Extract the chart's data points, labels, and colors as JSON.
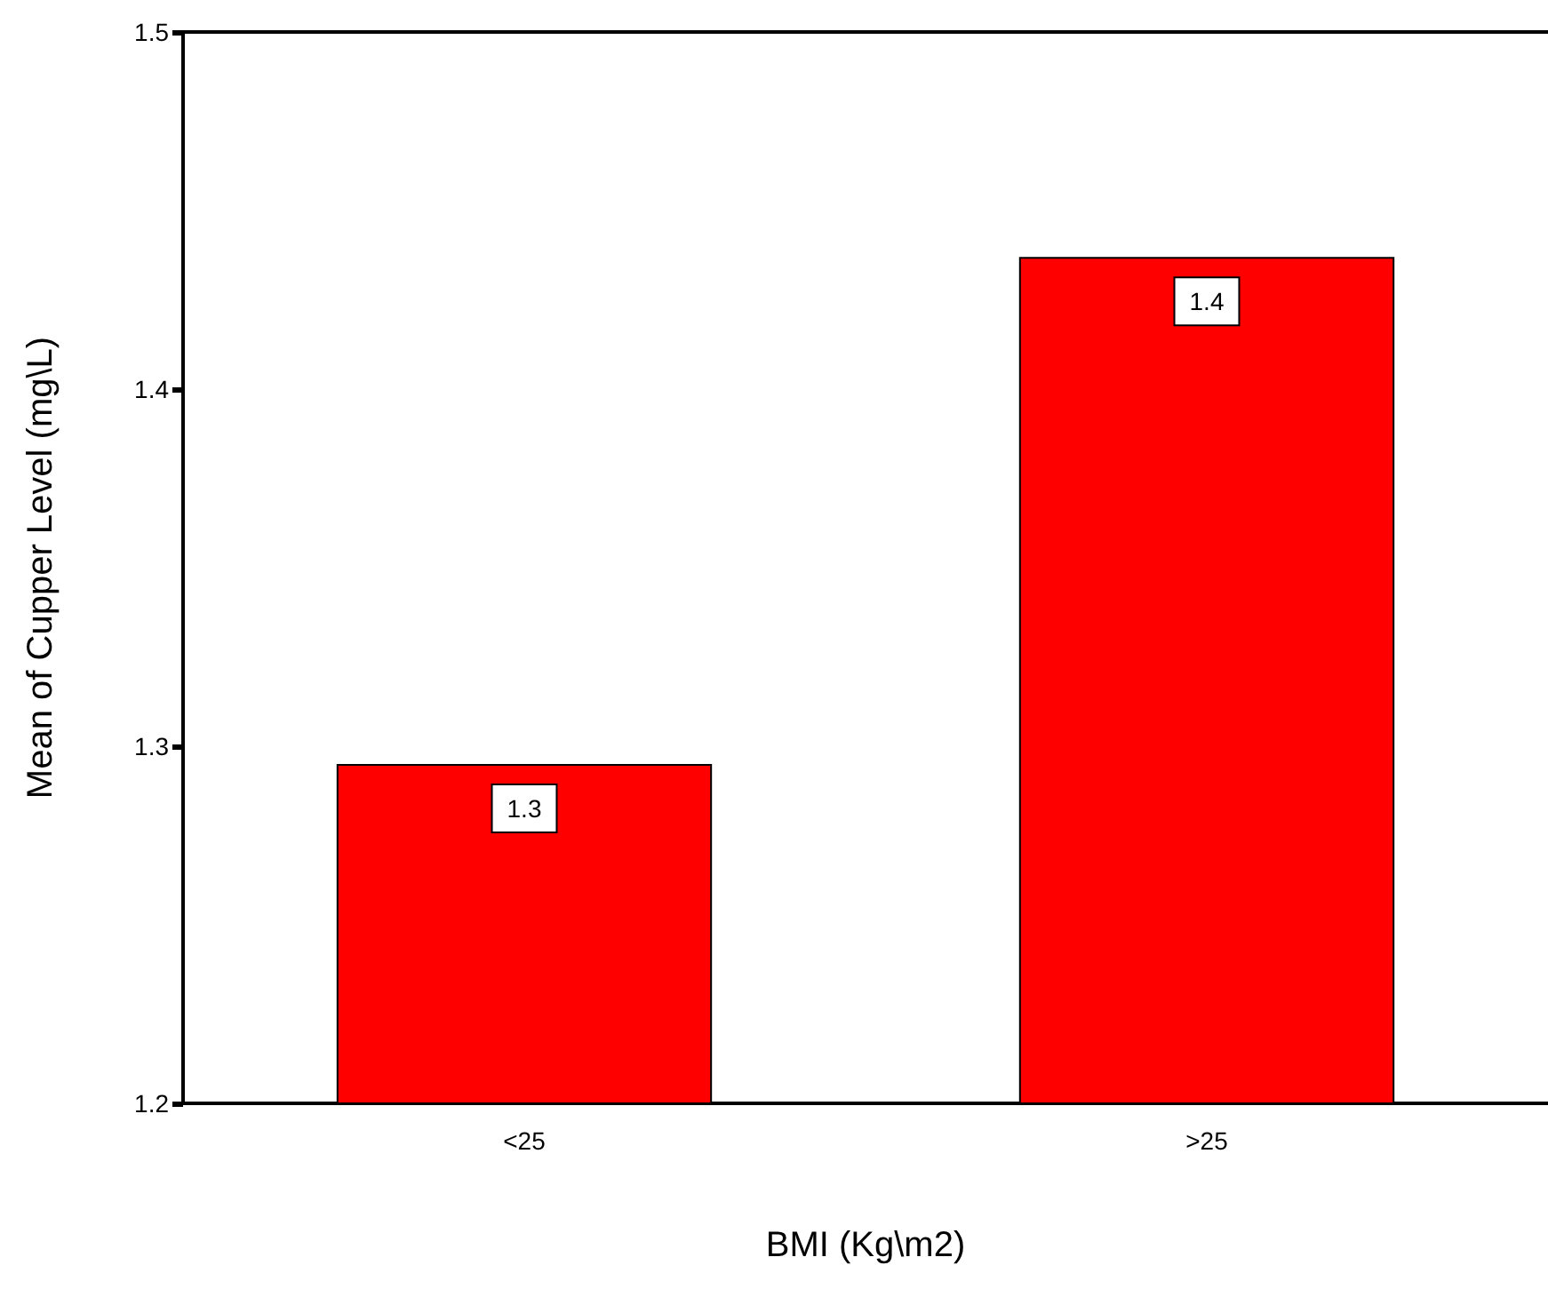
{
  "chart_data": {
    "type": "bar",
    "xlabel": "BMI (Kg\\m2)",
    "ylabel": "Mean of Cupper Level (mg\\L)",
    "categories": [
      "<25",
      ">25"
    ],
    "values": [
      1.295,
      1.437
    ],
    "value_labels": [
      "1.3",
      "1.4"
    ],
    "color": "#ff0000",
    "ylim": [
      1.2,
      1.5
    ],
    "yticks": [
      1.2,
      1.3,
      1.4,
      1.5
    ],
    "grid": false
  }
}
